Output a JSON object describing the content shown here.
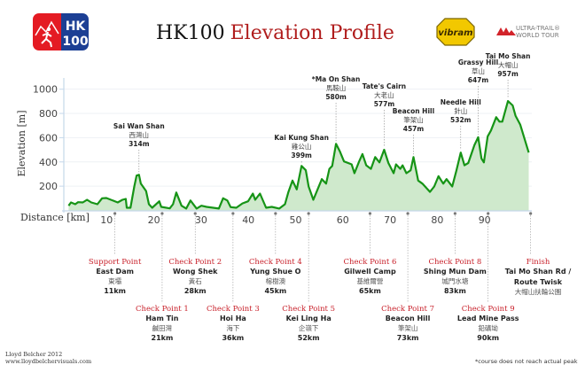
{
  "header": {
    "title_prefix": "HK100",
    "title_suffix": "Elevation Profile",
    "logo_hk100": "HK100",
    "logo_hk100_line1": "HK",
    "logo_hk100_line2": "100",
    "logo_vibram": "vibram",
    "logo_utwt_line1": "ULTRA-TRAIL®",
    "logo_utwt_line2": "WORLD TOUR"
  },
  "colors": {
    "line": "#169416",
    "fill": "#cfe9cc",
    "title_red": "#b01c1c",
    "checkpoint_red": "#c8202a",
    "axis": "#c5d8ea"
  },
  "chart_data": {
    "type": "area",
    "xlabel": "Distance [km]",
    "ylabel": "Elevation [m]",
    "xlim": [
      0,
      98.5
    ],
    "ylim": [
      0,
      1100
    ],
    "xticks": [
      10,
      20,
      30,
      40,
      50,
      60,
      70,
      80,
      90
    ],
    "yticks": [
      200,
      400,
      600,
      800,
      1000
    ],
    "grid": "horizontal",
    "x": [
      1.2,
      1.7,
      2.6,
      3.2,
      4.2,
      5.1,
      6,
      7.3,
      8.3,
      9.2,
      11.6,
      12.6,
      13.3,
      13.5,
      14.3,
      15.1,
      15.6,
      16.1,
      16.5,
      17.6,
      18.2,
      18.9,
      20.4,
      20.8,
      22.6,
      23.3,
      24,
      25.1,
      26.1,
      27,
      28.3,
      29.3,
      30.4,
      33,
      33.9,
      34.8,
      35.5,
      36.7,
      38,
      39.2,
      40.2,
      40.7,
      41.7,
      43,
      44.2,
      45.8,
      47,
      47.7,
      48.6,
      49.5,
      50.5,
      51.4,
      52,
      53,
      53.9,
      54.8,
      55.7,
      56.4,
      57,
      57.8,
      58.6,
      59.5,
      61.1,
      61.7,
      62.7,
      63.4,
      64.2,
      65.2,
      66.1,
      67,
      68,
      68.9,
      70,
      70.5,
      71.4,
      71.9,
      72.7,
      73.6,
      74.2,
      75.2,
      76.1,
      77.7,
      78.6,
      79.5,
      80.5,
      81.2,
      82.4,
      83.3,
      84.2,
      85,
      85.8,
      87.1,
      87.9,
      88.6,
      89.1,
      89.9,
      90.6,
      91.7,
      92.4,
      93,
      94.2,
      95.2,
      95.8,
      96.8,
      98.6
    ],
    "y": [
      39,
      66,
      51,
      68,
      66,
      88,
      66,
      51,
      100,
      102,
      66,
      88,
      95,
      22,
      22,
      197,
      287,
      294,
      221,
      160,
      51,
      22,
      75,
      29,
      17,
      51,
      148,
      39,
      15,
      82,
      15,
      39,
      29,
      15,
      100,
      82,
      27,
      22,
      58,
      75,
      139,
      88,
      139,
      22,
      29,
      15,
      51,
      148,
      246,
      173,
      367,
      331,
      197,
      88,
      173,
      258,
      221,
      343,
      367,
      550,
      489,
      404,
      380,
      307,
      404,
      465,
      372,
      343,
      440,
      396,
      501,
      391,
      307,
      380,
      343,
      372,
      307,
      331,
      440,
      246,
      221,
      153,
      197,
      282,
      221,
      258,
      197,
      331,
      477,
      372,
      391,
      538,
      604,
      428,
      396,
      611,
      659,
      769,
      732,
      732,
      903,
      866,
      781,
      708,
      477
    ],
    "peaks": [
      {
        "name": "Sai Wan Shan",
        "zh": "西灣山",
        "height": "314m",
        "km": 16.1
      },
      {
        "name": "Kai Kung Shan",
        "zh": "雞公山",
        "height": "399m",
        "km": 50.5
      },
      {
        "name": "*Ma On Shan",
        "zh": "馬鞍山",
        "height": "580m",
        "km": 57.8
      },
      {
        "name": "Tate's Cairn",
        "zh": "大老山",
        "height": "577m",
        "km": 68
      },
      {
        "name": "Beacon Hill",
        "zh": "筆架山",
        "height": "457m",
        "km": 74.2
      },
      {
        "name": "Needle Hill",
        "zh": "針山",
        "height": "532m",
        "km": 84.2
      },
      {
        "name": "Grassy Hill",
        "zh": "草山",
        "height": "647m",
        "km": 87.9
      },
      {
        "name": "Tai Mo Shan",
        "zh": "大帽山",
        "height": "957m",
        "km": 94.2
      }
    ],
    "checkpoints": [
      {
        "title": "Support Point",
        "name": "East Dam",
        "zh": "東壩",
        "dist": "11km",
        "km": 11
      },
      {
        "title": "Check Point 1",
        "name": "Ham Tin",
        "zh": "鹹田灣",
        "dist": "21km",
        "km": 21
      },
      {
        "title": "Check Point 2",
        "name": "Wong Shek",
        "zh": "黃石",
        "dist": "28km",
        "km": 28
      },
      {
        "title": "Check Point 3",
        "name": "Hoi Ha",
        "zh": "海下",
        "dist": "36km",
        "km": 36
      },
      {
        "title": "Check Point 4",
        "name": "Yung Shue O",
        "zh": "榕樹澳",
        "dist": "45km",
        "km": 45
      },
      {
        "title": "Check Point 5",
        "name": "Kei Ling Ha",
        "zh": "企嶺下",
        "dist": "52km",
        "km": 52
      },
      {
        "title": "Check Point 6",
        "name": "Gilwell Camp",
        "zh": "基維爾營",
        "dist": "65km",
        "km": 65
      },
      {
        "title": "Check Point 7",
        "name": "Beacon Hill",
        "zh": "筆架山",
        "dist": "73km",
        "km": 73
      },
      {
        "title": "Check Point 8",
        "name": "Shing Mun Dam",
        "zh": "城門水塘",
        "dist": "83km",
        "km": 83
      },
      {
        "title": "Check Point 9",
        "name": "Lead Mine Pass",
        "zh": "鉛礦坳",
        "dist": "90km",
        "km": 90
      },
      {
        "title": "Finish",
        "name": "Tai Mo Shan Rd /",
        "name2": "Route Twisk",
        "zh": "大帽山扶輪公園",
        "km": 99
      }
    ],
    "footnote": "*course does not reach actual peak"
  },
  "footer": {
    "credit": "Lloyd Belcher 2012",
    "url": "www.lloydbelchervisuals.com"
  }
}
